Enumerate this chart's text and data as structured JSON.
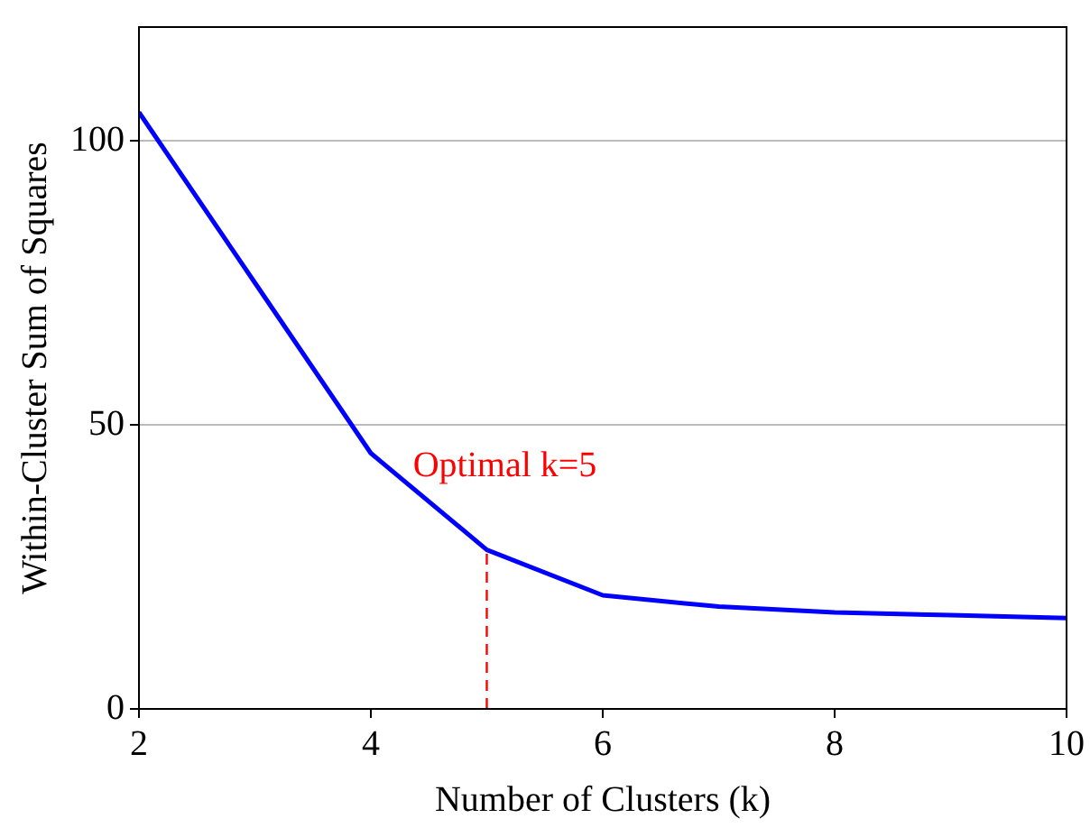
{
  "chart_data": {
    "type": "line",
    "xlabel": "Number of Clusters (k)",
    "ylabel": "Within-Cluster Sum of Squares",
    "x": [
      2,
      3,
      4,
      5,
      6,
      7,
      8,
      9,
      10
    ],
    "series": [
      {
        "color": "#0000ff",
        "values": [
          105,
          75,
          45,
          28,
          20,
          18,
          17,
          16.5,
          16
        ]
      }
    ],
    "xlim": [
      2,
      10
    ],
    "xticks": [
      2,
      4,
      6,
      8,
      10
    ],
    "ylim": [
      0,
      120
    ],
    "yticks": [
      0,
      50,
      100
    ],
    "grid": "y",
    "legend": false,
    "marker": "none",
    "line_style": "solid",
    "ref_lines": [
      {
        "axis": "x",
        "value": 5,
        "color": "#ff0000",
        "line_style": "dashed"
      }
    ],
    "annotations": [
      {
        "text": "Optimal k=5",
        "x": 5,
        "y": 28
      }
    ]
  }
}
